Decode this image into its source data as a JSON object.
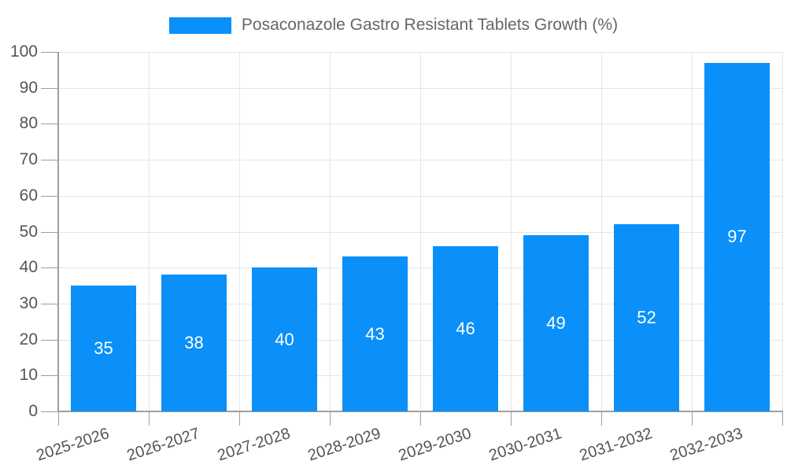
{
  "chart_data": {
    "type": "bar",
    "title": "Posaconazole Gastro Resistant Tablets Growth (%)",
    "categories": [
      "2025-2026",
      "2026-2027",
      "2027-2028",
      "2028-2029",
      "2029-2030",
      "2030-2031",
      "2031-2032",
      "2032-2033"
    ],
    "values": [
      35,
      38,
      40,
      43,
      46,
      49,
      52,
      97
    ],
    "value_labels": [
      "35",
      "38",
      "40",
      "43",
      "46",
      "49",
      "52",
      "97"
    ],
    "yticks": [
      "0",
      "10",
      "20",
      "30",
      "40",
      "50",
      "60",
      "70",
      "80",
      "90",
      "100"
    ],
    "ylim": [
      0,
      100
    ],
    "xlabel": "",
    "ylabel": "",
    "grid": "on",
    "legend_position": "top",
    "colors": {
      "bar": "#0a90f8",
      "grid": "#e6e6e6",
      "axis": "#9e9e9e",
      "tick_label": "#555555",
      "title": "#666666",
      "value_label": "#ffffff"
    }
  }
}
